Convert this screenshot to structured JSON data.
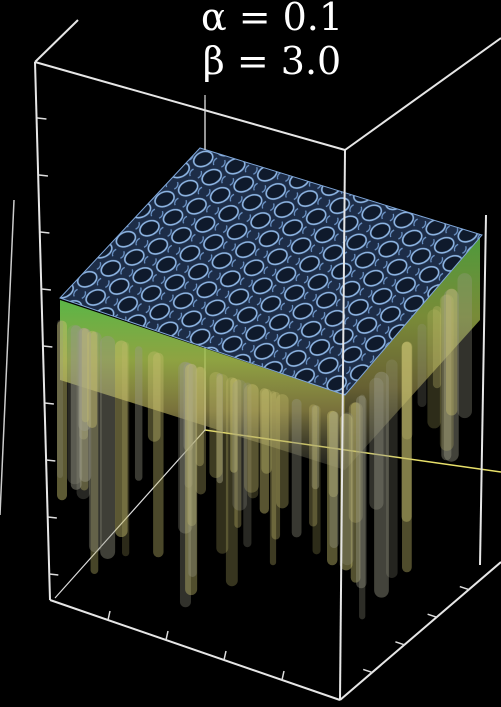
{
  "annotation": {
    "alpha": "α = 0.1",
    "beta": "β = 3.0"
  }
}
